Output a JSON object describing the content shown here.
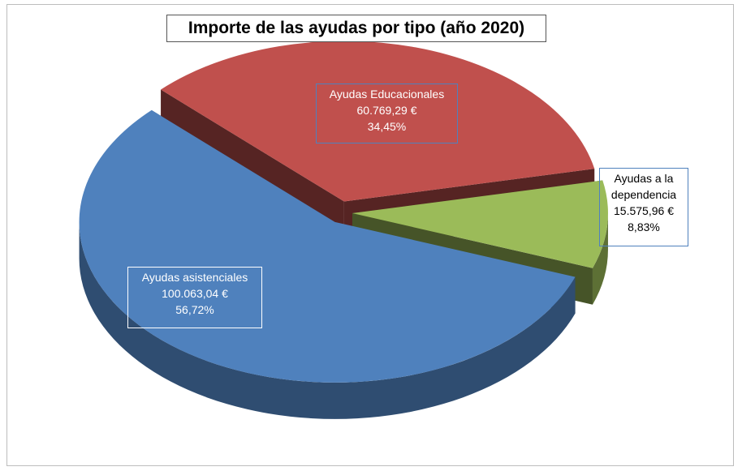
{
  "chart_data": {
    "type": "pie3d",
    "title": "Importe de las ayudas por tipo (año 2020)",
    "categories": [
      "Ayudas asistenciales",
      "Ayudas Educacionales",
      "Ayudas a la dependencia"
    ],
    "values": [
      100063.04,
      60769.29,
      15575.96
    ],
    "value_labels": [
      "100.063,04 €",
      "60.769,29 €",
      "15.575,96 €"
    ],
    "percentages": [
      56.72,
      34.45,
      8.83
    ],
    "percentage_labels": [
      "56,72%",
      "34,45%",
      "8,83%"
    ],
    "colors": [
      "#4f81bd",
      "#c0504d",
      "#9bbb59"
    ]
  }
}
